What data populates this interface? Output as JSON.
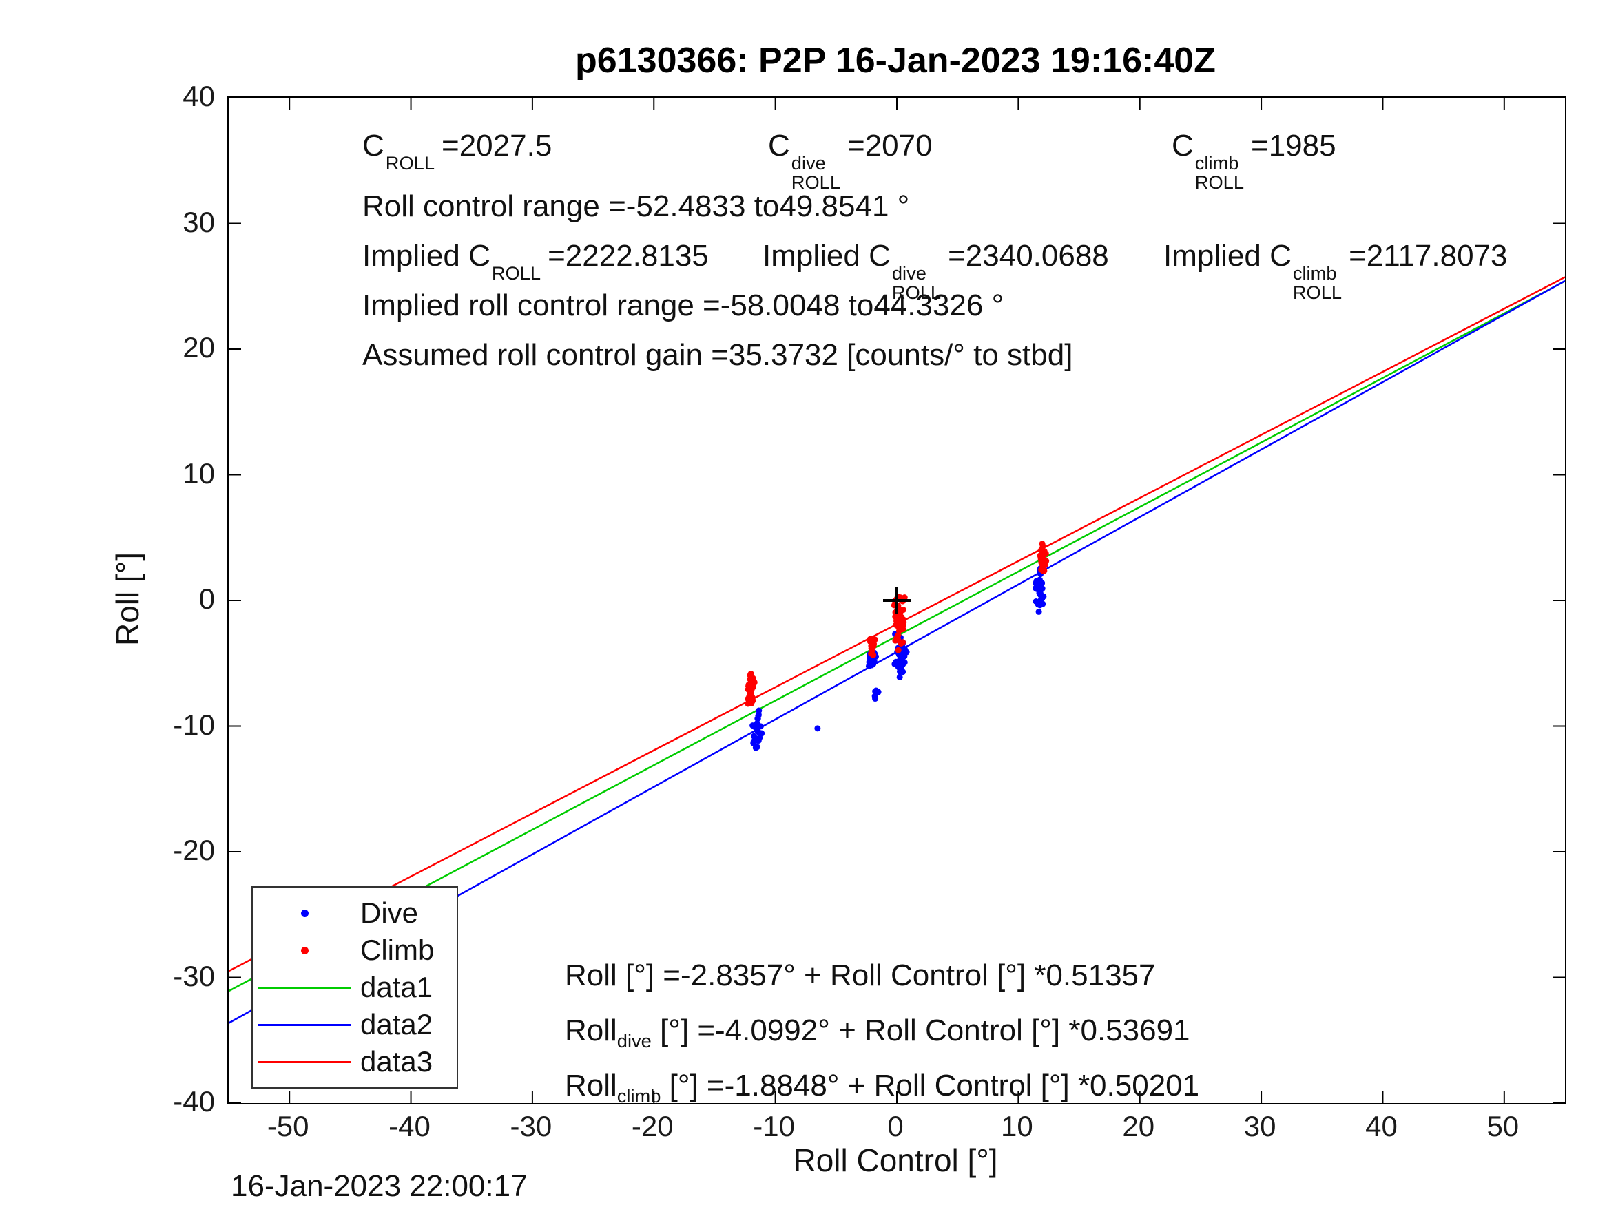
{
  "title": "p6130366: P2P 16-Jan-2023 19:16:40Z",
  "timestamp": "16-Jan-2023 22:00:17",
  "annotations": {
    "c_values": [
      {
        "pre": "",
        "base": "C",
        "sup": "",
        "sub": "ROLL",
        "rest": "=2027.5"
      },
      {
        "pre": "",
        "base": "C",
        "sup": "dive",
        "sub": "ROLL",
        "rest": "=2070"
      },
      {
        "pre": "",
        "base": "C",
        "sup": "climb",
        "sub": "ROLL",
        "rest": "=1985"
      }
    ],
    "roll_control_range": "Roll control range =-52.4833 to49.8541 °",
    "implied_c_values": [
      {
        "pre": "Implied ",
        "base": "C",
        "sup": "",
        "sub": "ROLL",
        "rest": "=2222.8135"
      },
      {
        "pre": "Implied ",
        "base": "C",
        "sup": "dive",
        "sub": "ROLL",
        "rest": "=2340.0688"
      },
      {
        "pre": "Implied ",
        "base": "C",
        "sup": "climb",
        "sub": "ROLL",
        "rest": "=2117.8073"
      }
    ],
    "implied_roll_control_range": "Implied roll control range =-58.0048 to44.3326 °",
    "assumed_gain": "Assumed roll control gain =35.3732 [counts/° to stbd]",
    "equations": [
      {
        "base": "Roll",
        "sub": "",
        "rest": " [°] =-2.8357° + Roll Control [°] *0.51357"
      },
      {
        "base": "Roll",
        "sub": "dive",
        "rest": " [°] =-4.0992° + Roll Control [°] *0.53691"
      },
      {
        "base": "Roll",
        "sub": "climb",
        "rest": " [°] =-1.8848° + Roll Control [°] *0.50201"
      }
    ]
  },
  "chart_data": {
    "type": "scatter",
    "title": "p6130366: P2P 16-Jan-2023 19:16:40Z",
    "xlabel": "Roll Control [°]",
    "ylabel": "Roll [°]",
    "xlim": [
      -55,
      55
    ],
    "ylim": [
      -40,
      40
    ],
    "xticks": [
      -50,
      -40,
      -30,
      -20,
      -10,
      0,
      10,
      20,
      30,
      40,
      50
    ],
    "yticks": [
      -40,
      -30,
      -20,
      -10,
      0,
      10,
      20,
      30,
      40
    ],
    "grid": false,
    "legend": {
      "position": "bottom-left",
      "entries": [
        {
          "label": "Dive",
          "type": "marker",
          "color": "#0000ff"
        },
        {
          "label": "Climb",
          "type": "marker",
          "color": "#ff0000"
        },
        {
          "label": "data1",
          "type": "line",
          "color": "#00cc00"
        },
        {
          "label": "data2",
          "type": "line",
          "color": "#0000ff"
        },
        {
          "label": "data3",
          "type": "line",
          "color": "#ff0000"
        }
      ]
    },
    "fit_lines": [
      {
        "name": "data1",
        "color": "#00cc00",
        "intercept": -2.8357,
        "slope": 0.51357
      },
      {
        "name": "data2",
        "color": "#0000ff",
        "intercept": -4.0992,
        "slope": 0.53691
      },
      {
        "name": "data3",
        "color": "#ff0000",
        "intercept": -1.8848,
        "slope": 0.50201
      }
    ],
    "reference_marker": {
      "x": 0,
      "y": 0,
      "shape": "plus",
      "color": "#000000"
    },
    "scatter_clusters": [
      {
        "series": "Dive",
        "color": "#0000ff",
        "cx": -11.5,
        "sx": 0.45,
        "cy": -10.3,
        "sy": 1.7,
        "n": 28
      },
      {
        "series": "Dive",
        "color": "#0000ff",
        "cx": -6.5,
        "sx": 0.05,
        "cy": -10.1,
        "sy": 0.1,
        "n": 1
      },
      {
        "series": "Dive",
        "color": "#0000ff",
        "cx": -2.0,
        "sx": 0.35,
        "cy": -4.6,
        "sy": 1.3,
        "n": 18
      },
      {
        "series": "Dive",
        "color": "#0000ff",
        "cx": -1.7,
        "sx": 0.25,
        "cy": -7.6,
        "sy": 0.7,
        "n": 6
      },
      {
        "series": "Dive",
        "color": "#0000ff",
        "cx": 0.3,
        "sx": 0.55,
        "cy": -4.6,
        "sy": 2.3,
        "n": 42
      },
      {
        "series": "Dive",
        "color": "#0000ff",
        "cx": 11.8,
        "sx": 0.45,
        "cy": 0.9,
        "sy": 1.9,
        "n": 30
      },
      {
        "series": "Climb",
        "color": "#ff0000",
        "cx": -12.0,
        "sx": 0.35,
        "cy": -7.2,
        "sy": 1.7,
        "n": 32
      },
      {
        "series": "Climb",
        "color": "#ff0000",
        "cx": -2.0,
        "sx": 0.3,
        "cy": -3.4,
        "sy": 1.0,
        "n": 12
      },
      {
        "series": "Climb",
        "color": "#ff0000",
        "cx": 0.2,
        "sx": 0.5,
        "cy": -1.6,
        "sy": 2.7,
        "n": 55
      },
      {
        "series": "Climb",
        "color": "#ff0000",
        "cx": 12.0,
        "sx": 0.35,
        "cy": 3.4,
        "sy": 1.3,
        "n": 36
      }
    ]
  }
}
